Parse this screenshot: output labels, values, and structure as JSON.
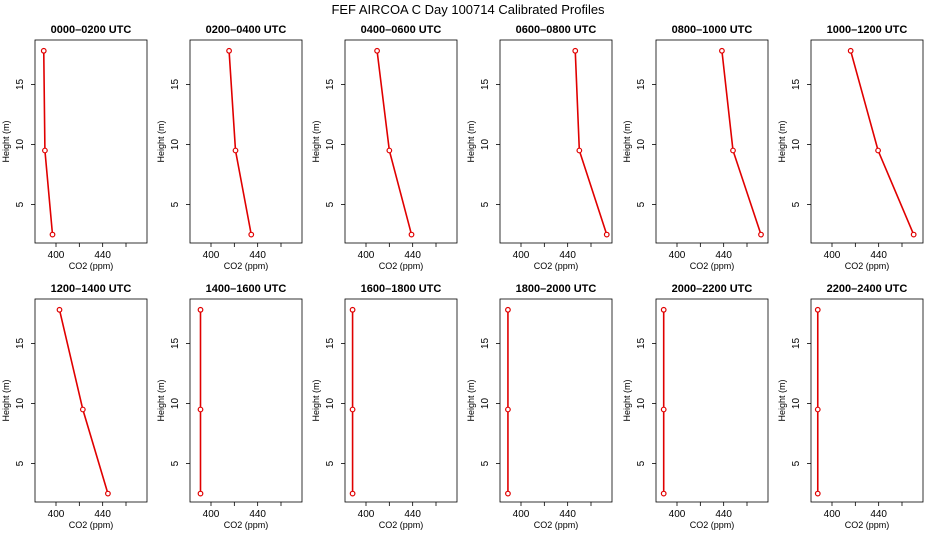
{
  "chart_data": {
    "title": "FEF AIRCOA C  Day 100714  Calibrated Profiles",
    "type": "line",
    "xlabel": "CO2 (ppm)",
    "ylabel": "Height (m)",
    "xlim": [
      382,
      478
    ],
    "ylim": [
      1.8,
      18.7
    ],
    "xticks": [
      400,
      440
    ],
    "xtick_labels": [
      "400",
      "440"
    ],
    "yticks": [
      5,
      10,
      15
    ],
    "ytick_labels": [
      "5",
      "10",
      "15"
    ],
    "heights": [
      17.8,
      9.5,
      2.5
    ],
    "color": "#e00000",
    "panels": [
      {
        "title": "0000–0200 UTC",
        "co2": [
          389.5,
          390.5,
          397.0
        ]
      },
      {
        "title": "0200–0400 UTC",
        "co2": [
          415.5,
          421.0,
          434.5
        ]
      },
      {
        "title": "0400–0600 UTC",
        "co2": [
          409.5,
          420.0,
          439.0
        ]
      },
      {
        "title": "0600–0800 UTC",
        "co2": [
          446.5,
          450.0,
          473.5
        ]
      },
      {
        "title": "0800–1000 UTC",
        "co2": [
          438.5,
          448.0,
          472.0
        ]
      },
      {
        "title": "1000–1200 UTC",
        "co2": [
          416.0,
          439.5,
          470.0
        ]
      },
      {
        "title": "1200–1400 UTC",
        "co2": [
          403.0,
          423.0,
          444.5
        ]
      },
      {
        "title": "1400–1600 UTC",
        "co2": [
          391.0,
          391.0,
          391.0
        ]
      },
      {
        "title": "1600–1800 UTC",
        "co2": [
          388.5,
          388.5,
          388.5
        ]
      },
      {
        "title": "1800–2000 UTC",
        "co2": [
          388.8,
          388.8,
          388.8
        ]
      },
      {
        "title": "2000–2200 UTC",
        "co2": [
          388.6,
          388.6,
          388.6
        ]
      },
      {
        "title": "2200–2400 UTC",
        "co2": [
          387.8,
          387.8,
          387.8
        ]
      }
    ]
  }
}
